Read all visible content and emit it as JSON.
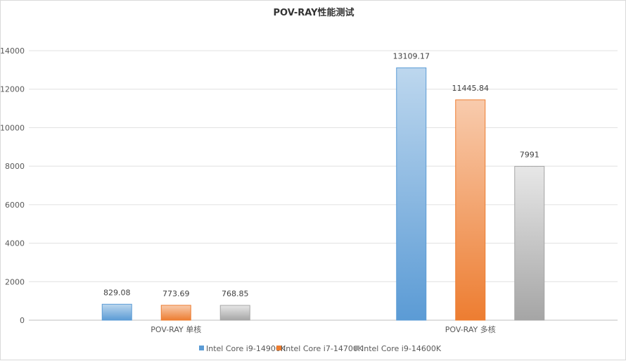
{
  "chart_data": {
    "type": "bar",
    "title": "POV-RAY性能测试",
    "categories": [
      "POV-RAY 单核",
      "POV-RAY 多核"
    ],
    "series": [
      {
        "name": "Intel Core i9-14900K",
        "values": [
          829.08,
          13109.17
        ],
        "labels": [
          "829.08",
          "13109.17"
        ],
        "color": "#5b9bd5",
        "color_light": "#bdd7ee"
      },
      {
        "name": "Intel Core i7-14700K",
        "values": [
          773.69,
          11445.84
        ],
        "labels": [
          "773.69",
          "11445.84"
        ],
        "color": "#ed7d31",
        "color_light": "#f8cbad"
      },
      {
        "name": "Intel Core i9-14600K",
        "values": [
          768.85,
          7991
        ],
        "labels": [
          "768.85",
          "7991"
        ],
        "color": "#a5a5a5",
        "color_light": "#e7e7e7"
      }
    ],
    "yticks": [
      "0",
      "2000",
      "4000",
      "6000",
      "8000",
      "10000",
      "12000",
      "14000"
    ],
    "ylim": [
      0,
      14000
    ],
    "grid": true,
    "legend_position": "bottom"
  }
}
